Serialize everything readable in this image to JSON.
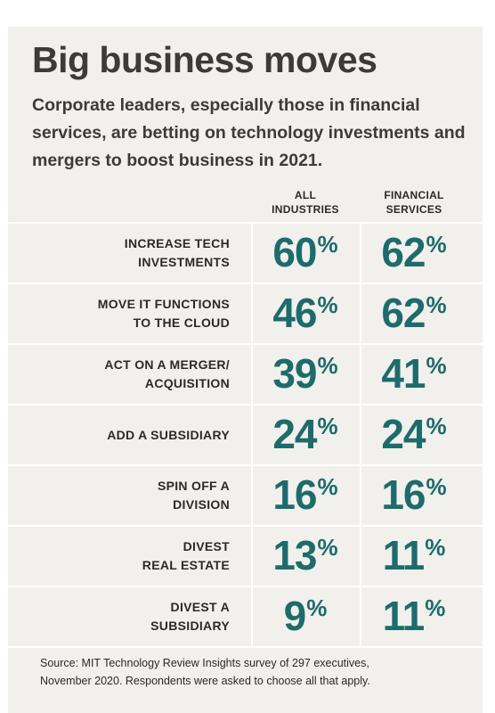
{
  "title": "Big business moves",
  "subtitle": "Corporate leaders, especially those in financial services, are betting on technology investments and mergers to boost business in 2021.",
  "source": [
    "Source: MIT Technology Review Insights survey of 297 executives,",
    "November 2020. Respondents were asked to choose all that apply."
  ],
  "colors": {
    "background": "#f1f0ec",
    "value": "#1e6b6c",
    "text": "#3d3a37"
  },
  "chart_data": {
    "type": "table",
    "title": "Big business moves",
    "columns": [
      {
        "name": "All industries",
        "label_lines": [
          "ALL",
          "INDUSTRIES"
        ]
      },
      {
        "name": "Financial services",
        "label_lines": [
          "FINANCIAL",
          "SERVICES"
        ]
      }
    ],
    "rows": [
      {
        "label_lines": [
          "INCREASE TECH",
          "INVESTMENTS"
        ],
        "values": [
          60,
          62
        ]
      },
      {
        "label_lines": [
          "MOVE IT FUNCTIONS",
          "TO THE CLOUD"
        ],
        "values": [
          46,
          62
        ]
      },
      {
        "label_lines": [
          "ACT ON A  MERGER/",
          "ACQUISITION"
        ],
        "values": [
          39,
          41
        ]
      },
      {
        "label_lines": [
          "ADD A SUBSIDIARY"
        ],
        "values": [
          24,
          24
        ]
      },
      {
        "label_lines": [
          "SPIN OFF A",
          "DIVISION"
        ],
        "values": [
          16,
          16
        ]
      },
      {
        "label_lines": [
          "DIVEST",
          "REAL ESTATE"
        ],
        "values": [
          13,
          11
        ]
      },
      {
        "label_lines": [
          "DIVEST A",
          "SUBSIDIARY"
        ],
        "values": [
          9,
          11
        ]
      }
    ],
    "unit": "%"
  }
}
